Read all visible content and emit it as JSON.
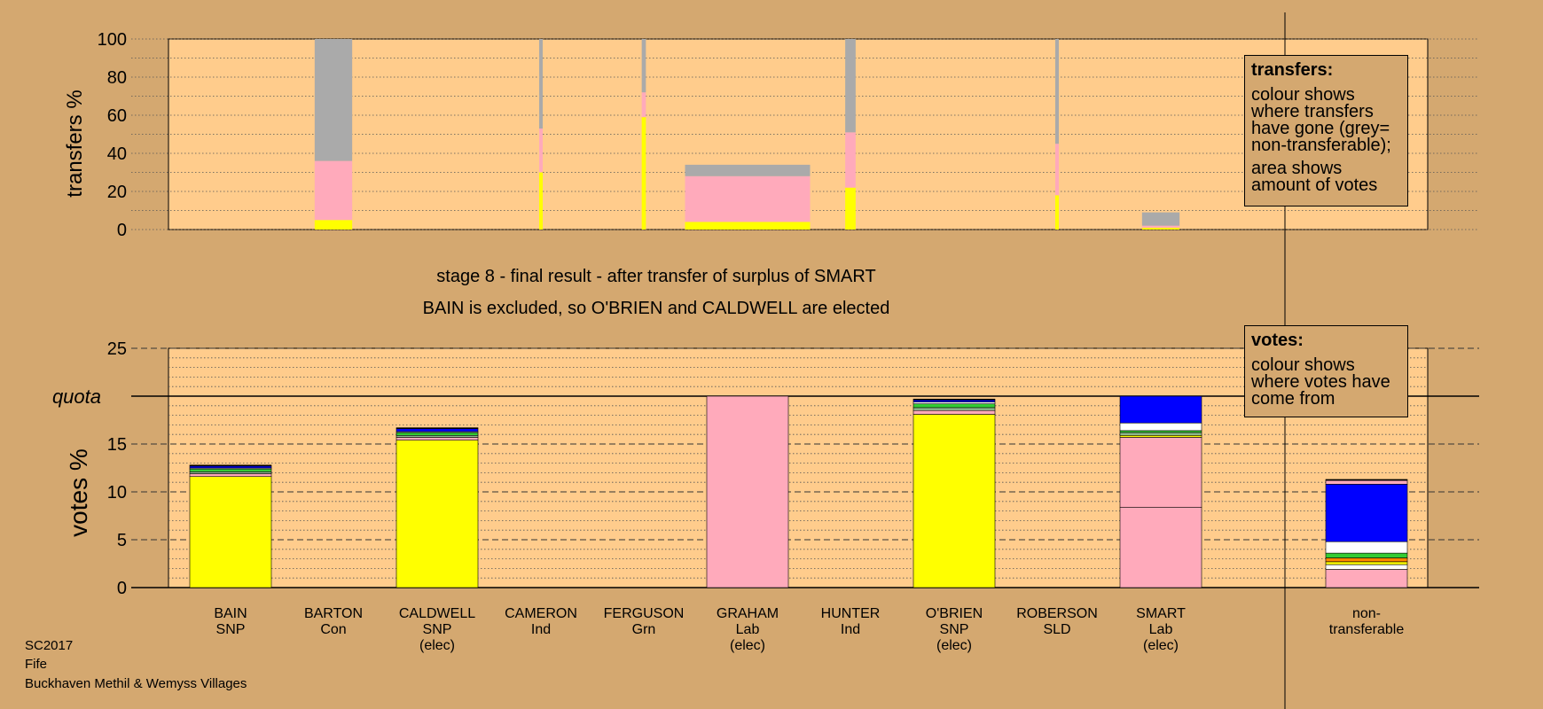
{
  "colors": {
    "background": "#d4a870",
    "plot_background": "#ffcc8c",
    "SNP": "#ffff00",
    "Lab": "#ffaabb",
    "Con": "#0000ff",
    "LD": "#ffffff",
    "Grn": "#33cc33",
    "Ind": "#8fbc8f",
    "nontransferable": "#aaaaaa"
  },
  "stage": {
    "title": "stage 8 - final result - after transfer of surplus of SMART",
    "subtitle": "BAIN is excluded, so O'BRIEN and CALDWELL are elected"
  },
  "legend_transfers": {
    "title": "transfers:",
    "line1": "colour shows where transfers have gone (grey= non-transferable);",
    "line2": "area shows amount of votes"
  },
  "legend_votes": {
    "title": "votes:",
    "line1": "colour shows where votes have come from"
  },
  "footer": {
    "line1": "SC2017",
    "line2": "Fife",
    "line3": "Buckhaven Methil & Wemyss Villages"
  },
  "chart_data": [
    {
      "type": "bar",
      "stacked": true,
      "ylabel": "transfers %",
      "ylim": [
        0,
        100
      ],
      "yticks": [
        0,
        20,
        40,
        60,
        80,
        100
      ],
      "grid": "dotted",
      "note": "bar width proportional to amount of votes transferred",
      "bars": [
        {
          "from": "BARTON",
          "share": 9.0,
          "SNP": 5,
          "Lab": 31,
          "nontransferable": 64
        },
        {
          "from": "CAMERON",
          "share": 0.8,
          "SNP": 30,
          "Lab": 23,
          "nontransferable": 47
        },
        {
          "from": "FERGUSON",
          "share": 1.0,
          "SNP": 59,
          "Lab": 13,
          "nontransferable": 28
        },
        {
          "from": "GRAHAM",
          "share": 30.0,
          "SNP": 4,
          "Lab": 24,
          "nontransferable": 6
        },
        {
          "from": "HUNTER",
          "share": 2.5,
          "SNP": 22,
          "Lab": 29,
          "nontransferable": 49
        },
        {
          "from": "ROBERSON",
          "share": 0.8,
          "SNP": 18,
          "Lab": 27,
          "nontransferable": 55
        },
        {
          "from": "SMART",
          "share": 9.0,
          "SNP": 1,
          "Lab": 1,
          "nontransferable": 7
        }
      ]
    },
    {
      "type": "bar",
      "stacked": true,
      "ylabel": "votes %",
      "ylim": [
        0,
        25
      ],
      "yticks": [
        0,
        5,
        10,
        15,
        20,
        25
      ],
      "quota": {
        "label": "quota",
        "value": 20
      },
      "grid": "dashed",
      "categories": [
        {
          "name": "BAIN",
          "party": "SNP",
          "status": ""
        },
        {
          "name": "BARTON",
          "party": "Con",
          "status": ""
        },
        {
          "name": "CALDWELL",
          "party": "SNP",
          "status": "(elec)"
        },
        {
          "name": "CAMERON",
          "party": "Ind",
          "status": ""
        },
        {
          "name": "FERGUSON",
          "party": "Grn",
          "status": ""
        },
        {
          "name": "GRAHAM",
          "party": "Lab",
          "status": "(elec)"
        },
        {
          "name": "HUNTER",
          "party": "Ind",
          "status": ""
        },
        {
          "name": "O'BRIEN",
          "party": "SNP",
          "status": "(elec)"
        },
        {
          "name": "ROBERSON",
          "party": "SLD",
          "status": ""
        },
        {
          "name": "SMART",
          "party": "Lab",
          "status": "(elec)"
        },
        {
          "name": "non-",
          "party": "transferable",
          "status": ""
        }
      ],
      "segments": [
        [
          [
            "#ffff00",
            11.6
          ],
          [
            "#ffaabb",
            0.3
          ],
          [
            "#8fbc8f",
            0.2
          ],
          [
            "#33cc33",
            0.3
          ],
          [
            "#ffffff",
            0.1
          ],
          [
            "#0000ff",
            0.2
          ],
          [
            "#000000",
            0.1
          ]
        ],
        [],
        [
          [
            "#ffff00",
            15.4
          ],
          [
            "#ffaabb",
            0.3
          ],
          [
            "#8fbc8f",
            0.2
          ],
          [
            "#33cc33",
            0.3
          ],
          [
            "#ffffff",
            0.1
          ],
          [
            "#0000ff",
            0.3
          ],
          [
            "#000000",
            0.1
          ]
        ],
        [],
        [],
        [
          [
            "#ffaabb",
            20.0
          ]
        ],
        [],
        [
          [
            "#ffff00",
            18.1
          ],
          [
            "#ffaabb",
            0.4
          ],
          [
            "#8fbc8f",
            0.3
          ],
          [
            "#33cc33",
            0.4
          ],
          [
            "#ffffff",
            0.2
          ],
          [
            "#0000ff",
            0.2
          ],
          [
            "#000000",
            0.1
          ]
        ],
        [],
        [
          [
            "#ffaabb",
            8.4
          ],
          [
            "#ffaabb",
            7.3
          ],
          [
            "#ffff00",
            0.2
          ],
          [
            "#8fbc8f",
            0.3
          ],
          [
            "#33cc33",
            0.2
          ],
          [
            "#ffffff",
            0.8
          ],
          [
            "#0000ff",
            2.8
          ]
        ],
        [
          [
            "#ffaabb",
            1.9
          ],
          [
            "#ffffff",
            0.5
          ],
          [
            "#ffff00",
            0.3
          ],
          [
            "#ff8800",
            0.4
          ],
          [
            "#33cc33",
            0.5
          ],
          [
            "#ffffff",
            1.2
          ],
          [
            "#0000ff",
            6.0
          ],
          [
            "#ffaabb",
            0.4
          ],
          [
            "#000000",
            0.1
          ]
        ]
      ]
    }
  ]
}
